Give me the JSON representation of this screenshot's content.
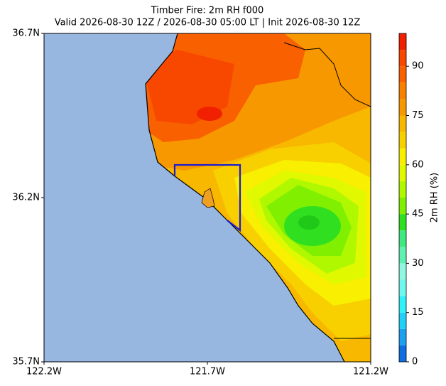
{
  "title": "Timber Fire: 2m RH f000",
  "subtitle": "Valid 2026-08-30 12Z / 2026-08-30 05:00 LT | Init 2026-08-30 12Z",
  "map": {
    "xlim": [
      -122.2,
      -121.2
    ],
    "ylim": [
      35.7,
      36.7
    ],
    "xticks": [
      {
        "value": -122.2,
        "label": "122.2W"
      },
      {
        "value": -121.7,
        "label": "121.7W"
      },
      {
        "value": -121.2,
        "label": "121.2W"
      }
    ],
    "yticks": [
      {
        "value": 35.7,
        "label": "35.7N"
      },
      {
        "value": 36.2,
        "label": "36.2N"
      },
      {
        "value": 36.7,
        "label": "36.7N"
      }
    ]
  },
  "colorbar": {
    "label": "2m RH (%)",
    "lim": [
      0,
      100
    ],
    "ticks": [
      0,
      15,
      30,
      45,
      60,
      75,
      90
    ],
    "levels": [
      0,
      5,
      10,
      15,
      20,
      25,
      30,
      35,
      40,
      45,
      50,
      55,
      60,
      65,
      70,
      75,
      80,
      85,
      90,
      95,
      100
    ],
    "colors": [
      "#0f6ee0",
      "#1ea0f0",
      "#20d0f8",
      "#30f0f8",
      "#70f8f0",
      "#90f8e0",
      "#60f0b0",
      "#40e880",
      "#30e020",
      "#80f000",
      "#b0f800",
      "#e0f800",
      "#f8f000",
      "#f8d000",
      "#f8b800",
      "#f89800",
      "#f88000",
      "#f86000",
      "#f84800",
      "#f02000"
    ]
  }
}
